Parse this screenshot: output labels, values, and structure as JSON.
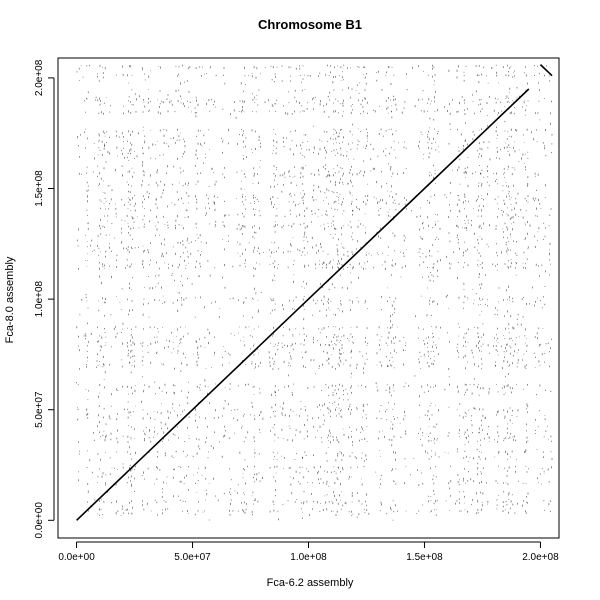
{
  "chart_data": {
    "type": "scatter",
    "title": "Chromosome B1",
    "xlabel": "Fca-6.2 assembly",
    "ylabel": "Fca-8.0 assembly",
    "xlim": [
      -8000000,
      208000000
    ],
    "ylim": [
      -8000000,
      209000000
    ],
    "x_ticks": [
      {
        "value": 0,
        "label": "0.0e+00"
      },
      {
        "value": 50000000,
        "label": "5.0e+07"
      },
      {
        "value": 100000000,
        "label": "1.0e+08"
      },
      {
        "value": 150000000,
        "label": "1.5e+08"
      },
      {
        "value": 200000000,
        "label": "2.0e+08"
      }
    ],
    "y_ticks": [
      {
        "value": 0,
        "label": "0.0e+00"
      },
      {
        "value": 50000000,
        "label": "5.0e+07"
      },
      {
        "value": 100000000,
        "label": "1.0e+08"
      },
      {
        "value": 150000000,
        "label": "1.5e+08"
      },
      {
        "value": 200000000,
        "label": "2.0e+08"
      }
    ],
    "data_extent": {
      "x": [
        0,
        205000000
      ],
      "y": [
        0,
        206000000
      ]
    },
    "main_diagonal": [
      [
        0,
        0
      ],
      [
        40000000,
        40000000
      ],
      [
        100000000,
        100000000
      ],
      [
        150000000,
        150000000
      ],
      [
        195000000,
        195000000
      ]
    ],
    "inverted_segment": [
      [
        200000000,
        206000000
      ],
      [
        205000000,
        201000000
      ]
    ],
    "background_point_density": "dense",
    "point_color": "#000000",
    "grid": false
  }
}
